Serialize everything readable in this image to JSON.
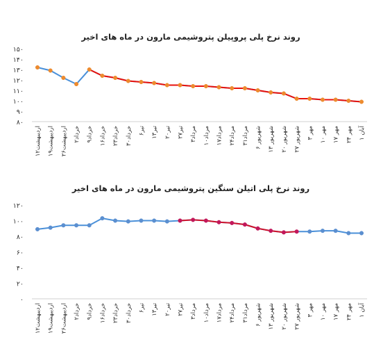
{
  "chart_data": [
    {
      "type": "line",
      "title": "روند نرخ پلی پروپیلن پتروشیمی مارون در ماه های اخیر",
      "categories": [
        "۱۲اردیبهشت",
        "۱۹اردیبهشت",
        "۲۶اردیبهشت",
        "۲خرداد",
        "۹خرداد",
        "۱۶خرداد",
        "۲۳خرداد",
        "۳۰خرداد",
        "۶تیر",
        "۱۳تیر",
        "۲۰تیر",
        "۲۷تیر",
        "۳مرداد",
        "۱۰مرداد",
        "۱۷مرداد",
        "۲۴مرداد",
        "۳۱مرداد",
        "۶ شهریور",
        "۱۳ شهریور",
        "۲۰ شهریور",
        "۲۷ شهریور",
        "۳ مهر",
        "۱۰ مهر",
        "۱۷ مهر",
        "۲۴ مهر",
        "۱ آبان"
      ],
      "yticks": [
        "۸۰",
        "۹۰",
        "۱۰۰",
        "۱۱۰",
        "۱۲۰",
        "۱۳۰",
        "۱۴۰",
        "۱۵۰"
      ],
      "ylim": [
        80,
        150
      ],
      "values": [
        132,
        129,
        122,
        116,
        130,
        124,
        122,
        119,
        118,
        117,
        115,
        115,
        114,
        114,
        113,
        112,
        112,
        110,
        108,
        107,
        102,
        102,
        101,
        101,
        100,
        99
      ],
      "highlight_range": [
        4,
        25
      ],
      "colors": {
        "line": "#4a90d9",
        "highlight": "#e8120c",
        "marker": "#ed8b2f"
      }
    },
    {
      "type": "line",
      "title": "روند نرخ پلی اتیلن سنگین پتروشیمی مارون در ماه های اخیر",
      "categories": [
        "۱۲اردیبهشت",
        "۱۹اردیبهشت",
        "۲۶اردیبهشت",
        "۲خرداد",
        "۹خرداد",
        "۱۶خرداد",
        "۲۳خرداد",
        "۳۰خرداد",
        "۶تیر",
        "۱۳تیر",
        "۲۰تیر",
        "۲۷تیر",
        "۳مرداد",
        "۱۰مرداد",
        "۱۷مرداد",
        "۲۴مرداد",
        "۳۱مرداد",
        "۶ شهریور",
        "۱۳ شهریور",
        "۲۰ شهریور",
        "۲۷ شهریور",
        "۳ مهر",
        "۱۰ مهر",
        "۱۷ مهر",
        "۲۴ مهر",
        "۱ آبان"
      ],
      "yticks": [
        "۰",
        "۲۰",
        "۴۰",
        "۶۰",
        "۸۰",
        "۱۰۰",
        "۱۲۰"
      ],
      "ylim": [
        0,
        120
      ],
      "values": [
        89,
        91,
        94,
        94,
        94,
        103,
        100,
        99,
        100,
        100,
        99,
        100,
        101,
        100,
        98,
        97,
        95,
        90,
        87,
        85,
        86,
        86,
        87,
        87,
        84,
        84
      ],
      "highlight_range": [
        11,
        20
      ],
      "colors": {
        "line": "#4a90d9",
        "highlight": "#d0122a",
        "marker": "#5b8fd0",
        "highlight_marker": "#c2185b"
      }
    }
  ]
}
